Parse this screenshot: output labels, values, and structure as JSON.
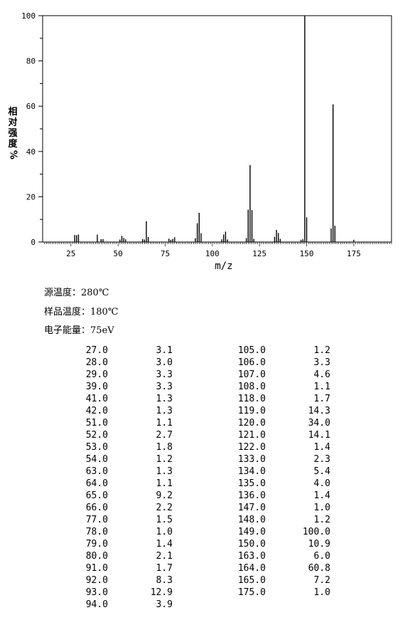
{
  "chart_data": {
    "type": "bar",
    "xlabel": "m/z",
    "ylabel": "相对强度%",
    "xlim": [
      10,
      195
    ],
    "ylim": [
      0,
      100
    ],
    "xticks": [
      25,
      50,
      75,
      100,
      125,
      150,
      175
    ],
    "yticks": [
      0,
      20,
      40,
      60,
      80,
      100
    ],
    "grid": false,
    "peaks": [
      [
        27.0,
        3.1
      ],
      [
        28.0,
        3.0
      ],
      [
        29.0,
        3.3
      ],
      [
        39.0,
        3.3
      ],
      [
        41.0,
        1.3
      ],
      [
        42.0,
        1.3
      ],
      [
        51.0,
        1.1
      ],
      [
        52.0,
        2.7
      ],
      [
        53.0,
        1.8
      ],
      [
        54.0,
        1.2
      ],
      [
        63.0,
        1.3
      ],
      [
        64.0,
        1.1
      ],
      [
        65.0,
        9.2
      ],
      [
        66.0,
        2.2
      ],
      [
        77.0,
        1.5
      ],
      [
        78.0,
        1.0
      ],
      [
        79.0,
        1.4
      ],
      [
        80.0,
        2.1
      ],
      [
        91.0,
        1.7
      ],
      [
        92.0,
        8.3
      ],
      [
        93.0,
        12.9
      ],
      [
        94.0,
        3.9
      ],
      [
        105.0,
        1.2
      ],
      [
        106.0,
        3.3
      ],
      [
        107.0,
        4.6
      ],
      [
        108.0,
        1.1
      ],
      [
        118.0,
        1.7
      ],
      [
        119.0,
        14.3
      ],
      [
        120.0,
        34.0
      ],
      [
        121.0,
        14.1
      ],
      [
        122.0,
        1.4
      ],
      [
        133.0,
        2.3
      ],
      [
        134.0,
        5.4
      ],
      [
        135.0,
        4.0
      ],
      [
        136.0,
        1.4
      ],
      [
        147.0,
        1.0
      ],
      [
        148.0,
        1.2
      ],
      [
        149.0,
        100.0
      ],
      [
        150.0,
        10.9
      ],
      [
        163.0,
        6.0
      ],
      [
        164.0,
        60.8
      ],
      [
        165.0,
        7.2
      ],
      [
        175.0,
        1.0
      ]
    ]
  },
  "axis_labels": {
    "y": [
      "相",
      "对",
      "强",
      "度",
      "%"
    ],
    "x": "m/z"
  },
  "conditions": {
    "source_temp": "源温度：280℃",
    "sample_temp": "样品温度：180℃",
    "electron_energy": "电子能量：75eV"
  },
  "table": {
    "left": [
      [
        "27.0",
        "3.1"
      ],
      [
        "28.0",
        "3.0"
      ],
      [
        "29.0",
        "3.3"
      ],
      [
        "39.0",
        "3.3"
      ],
      [
        "41.0",
        "1.3"
      ],
      [
        "42.0",
        "1.3"
      ],
      [
        "51.0",
        "1.1"
      ],
      [
        "52.0",
        "2.7"
      ],
      [
        "53.0",
        "1.8"
      ],
      [
        "54.0",
        "1.2"
      ],
      [
        "63.0",
        "1.3"
      ],
      [
        "64.0",
        "1.1"
      ],
      [
        "65.0",
        "9.2"
      ],
      [
        "66.0",
        "2.2"
      ],
      [
        "77.0",
        "1.5"
      ],
      [
        "78.0",
        "1.0"
      ],
      [
        "79.0",
        "1.4"
      ],
      [
        "80.0",
        "2.1"
      ],
      [
        "91.0",
        "1.7"
      ],
      [
        "92.0",
        "8.3"
      ],
      [
        "93.0",
        "12.9"
      ],
      [
        "94.0",
        "3.9"
      ]
    ],
    "right": [
      [
        "105.0",
        "1.2"
      ],
      [
        "106.0",
        "3.3"
      ],
      [
        "107.0",
        "4.6"
      ],
      [
        "108.0",
        "1.1"
      ],
      [
        "118.0",
        "1.7"
      ],
      [
        "119.0",
        "14.3"
      ],
      [
        "120.0",
        "34.0"
      ],
      [
        "121.0",
        "14.1"
      ],
      [
        "122.0",
        "1.4"
      ],
      [
        "133.0",
        "2.3"
      ],
      [
        "134.0",
        "5.4"
      ],
      [
        "135.0",
        "4.0"
      ],
      [
        "136.0",
        "1.4"
      ],
      [
        "147.0",
        "1.0"
      ],
      [
        "148.0",
        "1.2"
      ],
      [
        "149.0",
        "100.0"
      ],
      [
        "150.0",
        "10.9"
      ],
      [
        "163.0",
        "6.0"
      ],
      [
        "164.0",
        "60.8"
      ],
      [
        "165.0",
        "7.2"
      ],
      [
        "175.0",
        "1.0"
      ]
    ]
  }
}
